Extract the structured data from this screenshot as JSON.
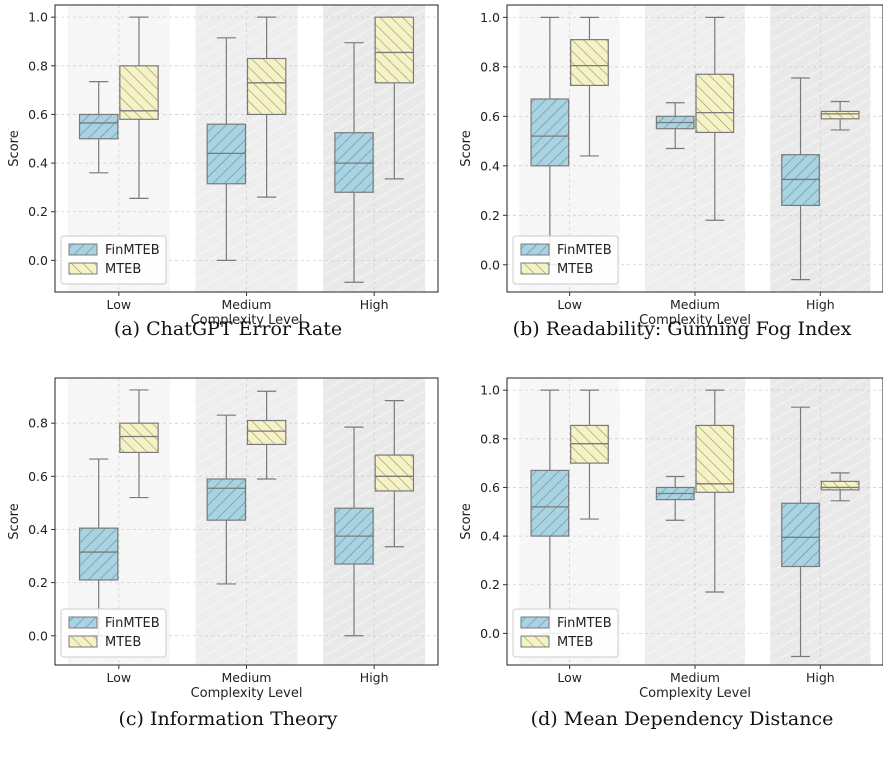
{
  "colors": {
    "finmteb_fill": "#a9d3e0",
    "mteb_fill": "#f4f2c6",
    "box_stroke": "#7a7a7a",
    "grid": "#d0d0d0",
    "band_dark": "#e9e9e9",
    "band_light": "#f6f6f6",
    "hatch_finmteb": "#5c8fa3",
    "hatch_mteb": "#9a9660"
  },
  "chart_data": [
    {
      "type": "box",
      "caption": "(a) ChatGPT Error Rate",
      "xlabel": "Complexity Level",
      "ylabel": "Score",
      "categories": [
        "Low",
        "Medium",
        "High"
      ],
      "ylim": [
        -0.13,
        1.05
      ],
      "yticks": [
        0.0,
        0.2,
        0.4,
        0.6,
        0.8,
        1.0
      ],
      "ytick_labels": [
        "0.0",
        "0.2",
        "0.4",
        "0.6",
        "0.8",
        "1.0"
      ],
      "grid": true,
      "legend_position": "lower-left",
      "series": [
        {
          "name": "FinMTEB",
          "boxes": [
            {
              "min": 0.36,
              "q1": 0.5,
              "median": 0.565,
              "q3": 0.6,
              "max": 0.735
            },
            {
              "min": 0.0,
              "q1": 0.315,
              "median": 0.44,
              "q3": 0.56,
              "max": 0.915
            },
            {
              "min": -0.09,
              "q1": 0.28,
              "median": 0.4,
              "q3": 0.525,
              "max": 0.895
            }
          ]
        },
        {
          "name": "MTEB",
          "boxes": [
            {
              "min": 0.255,
              "q1": 0.58,
              "median": 0.615,
              "q3": 0.8,
              "max": 1.0
            },
            {
              "min": 0.26,
              "q1": 0.6,
              "median": 0.73,
              "q3": 0.83,
              "max": 1.0
            },
            {
              "min": 0.335,
              "q1": 0.73,
              "median": 0.855,
              "q3": 1.0,
              "max": 1.0
            }
          ]
        }
      ]
    },
    {
      "type": "box",
      "caption": "(b) Readability: Gunning Fog Index",
      "xlabel": "Complexity Level",
      "ylabel": "Score",
      "categories": [
        "Low",
        "Medium",
        "High"
      ],
      "ylim": [
        -0.11,
        1.05
      ],
      "yticks": [
        0.0,
        0.2,
        0.4,
        0.6,
        0.8,
        1.0
      ],
      "ytick_labels": [
        "0.0",
        "0.2",
        "0.4",
        "0.6",
        "0.8",
        "1.0"
      ],
      "grid": true,
      "legend_position": "lower-left",
      "series": [
        {
          "name": "FinMTEB",
          "boxes": [
            {
              "min": 0.0,
              "q1": 0.4,
              "median": 0.52,
              "q3": 0.67,
              "max": 1.0
            },
            {
              "min": 0.47,
              "q1": 0.55,
              "median": 0.575,
              "q3": 0.6,
              "max": 0.655
            },
            {
              "min": -0.06,
              "q1": 0.24,
              "median": 0.345,
              "q3": 0.445,
              "max": 0.755
            }
          ]
        },
        {
          "name": "MTEB",
          "boxes": [
            {
              "min": 0.44,
              "q1": 0.725,
              "median": 0.805,
              "q3": 0.91,
              "max": 1.0
            },
            {
              "min": 0.18,
              "q1": 0.535,
              "median": 0.615,
              "q3": 0.77,
              "max": 1.0
            },
            {
              "min": 0.545,
              "q1": 0.59,
              "median": 0.61,
              "q3": 0.62,
              "max": 0.66
            }
          ]
        }
      ]
    },
    {
      "type": "box",
      "caption": "(c) Information Theory",
      "xlabel": "Complexity Level",
      "ylabel": "Score",
      "categories": [
        "Low",
        "Medium",
        "High"
      ],
      "ylim": [
        -0.11,
        0.97
      ],
      "yticks": [
        0.0,
        0.2,
        0.4,
        0.6,
        0.8
      ],
      "ytick_labels": [
        "0.0",
        "0.2",
        "0.4",
        "0.6",
        "0.8"
      ],
      "grid": true,
      "legend_position": "lower-left",
      "series": [
        {
          "name": "FinMTEB",
          "boxes": [
            {
              "min": 0.0,
              "q1": 0.21,
              "median": 0.315,
              "q3": 0.405,
              "max": 0.665
            },
            {
              "min": 0.195,
              "q1": 0.435,
              "median": 0.555,
              "q3": 0.59,
              "max": 0.83
            },
            {
              "min": 0.0,
              "q1": 0.27,
              "median": 0.375,
              "q3": 0.48,
              "max": 0.785
            }
          ]
        },
        {
          "name": "MTEB",
          "boxes": [
            {
              "min": 0.52,
              "q1": 0.69,
              "median": 0.75,
              "q3": 0.8,
              "max": 0.925
            },
            {
              "min": 0.59,
              "q1": 0.72,
              "median": 0.77,
              "q3": 0.81,
              "max": 0.92
            },
            {
              "min": 0.335,
              "q1": 0.545,
              "median": 0.6,
              "q3": 0.68,
              "max": 0.885
            }
          ]
        }
      ]
    },
    {
      "type": "box",
      "caption": "(d) Mean Dependency Distance",
      "xlabel": "Complexity Level",
      "ylabel": "Score",
      "categories": [
        "Low",
        "Medium",
        "High"
      ],
      "ylim": [
        -0.13,
        1.05
      ],
      "yticks": [
        0.0,
        0.2,
        0.4,
        0.6,
        0.8,
        1.0
      ],
      "ytick_labels": [
        "0.0",
        "0.2",
        "0.4",
        "0.6",
        "0.8",
        "1.0"
      ],
      "grid": true,
      "legend_position": "lower-left",
      "series": [
        {
          "name": "FinMTEB",
          "boxes": [
            {
              "min": 0.0,
              "q1": 0.4,
              "median": 0.52,
              "q3": 0.67,
              "max": 1.0
            },
            {
              "min": 0.465,
              "q1": 0.55,
              "median": 0.575,
              "q3": 0.6,
              "max": 0.645
            },
            {
              "min": -0.095,
              "q1": 0.275,
              "median": 0.395,
              "q3": 0.535,
              "max": 0.93
            }
          ]
        },
        {
          "name": "MTEB",
          "boxes": [
            {
              "min": 0.47,
              "q1": 0.7,
              "median": 0.78,
              "q3": 0.855,
              "max": 1.0
            },
            {
              "min": 0.17,
              "q1": 0.58,
              "median": 0.615,
              "q3": 0.855,
              "max": 1.0
            },
            {
              "min": 0.545,
              "q1": 0.59,
              "median": 0.6,
              "q3": 0.625,
              "max": 0.66
            }
          ]
        }
      ]
    }
  ]
}
